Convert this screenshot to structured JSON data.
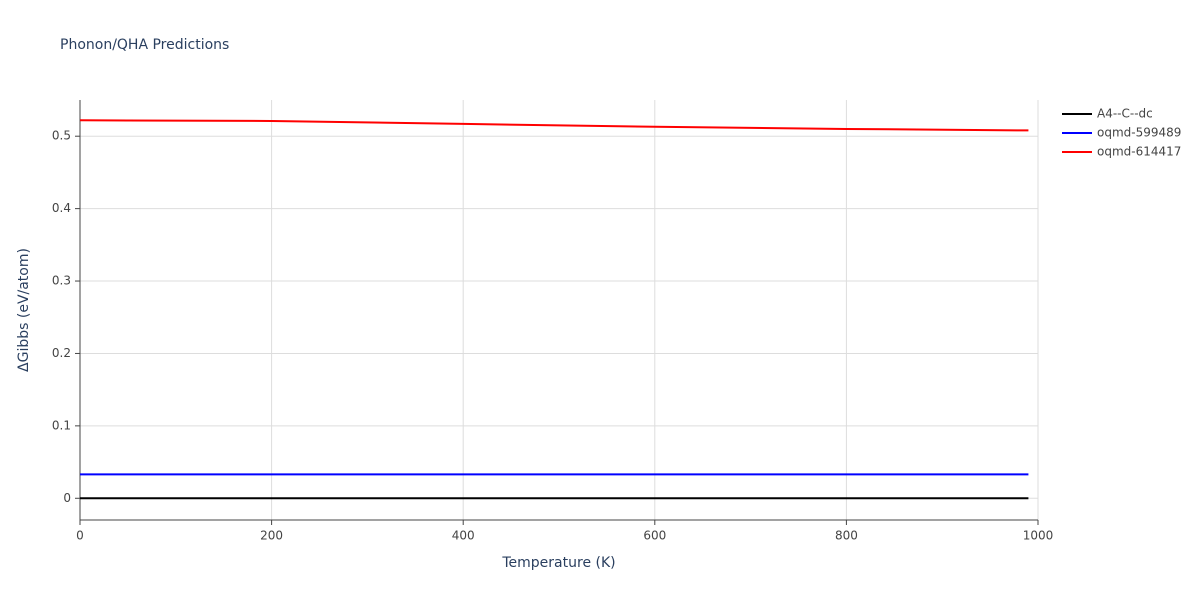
{
  "chart_data": {
    "type": "line",
    "title": "Phonon/QHA Predictions",
    "x_label": "Temperature (K)",
    "y_label": "ΔGibbs (eV/atom)",
    "x": [
      0,
      200,
      400,
      600,
      800,
      990
    ],
    "series": [
      {
        "name": "A4--C--dc",
        "color": "#000000",
        "values": [
          0,
          0,
          0,
          0,
          0,
          0
        ]
      },
      {
        "name": "oqmd-599489",
        "color": "#0000ff",
        "values": [
          0.033,
          0.033,
          0.033,
          0.033,
          0.033,
          0.033
        ]
      },
      {
        "name": "oqmd-614417",
        "color": "#ff0000",
        "values": [
          0.522,
          0.521,
          0.517,
          0.513,
          0.51,
          0.508
        ]
      }
    ],
    "xlim": [
      0,
      1000
    ],
    "xticks": [
      0,
      200,
      400,
      600,
      800,
      1000
    ],
    "ylim": [
      -0.03,
      0.55
    ],
    "yticks": [
      0,
      0.1,
      0.2,
      0.3,
      0.4,
      0.5
    ],
    "grid": true
  }
}
